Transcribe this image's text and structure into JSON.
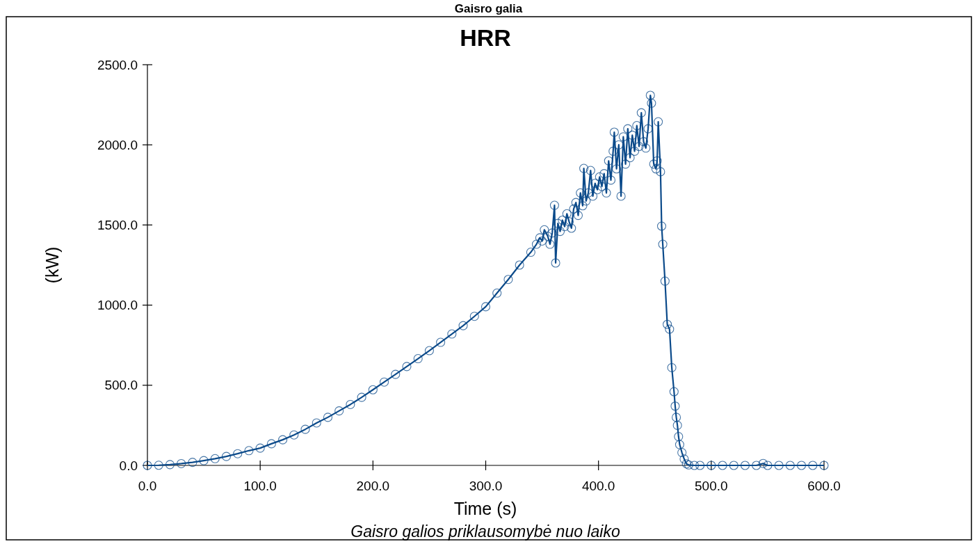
{
  "chart_data": {
    "type": "line",
    "title": "Gaisro galia",
    "subtitle": "HRR",
    "xlabel": "Time (s)",
    "ylabel": "(kW)",
    "annotations": [
      "Gaisro galios priklausomybė nuo laiko"
    ],
    "marker": "circle",
    "color": "#0b4a8a",
    "xlim": [
      0,
      600
    ],
    "ylim": [
      0,
      2500
    ],
    "xticks": [
      {
        "value": 0,
        "label": "0.0"
      },
      {
        "value": 100,
        "label": "100.0"
      },
      {
        "value": 200,
        "label": "200.0"
      },
      {
        "value": 300,
        "label": "300.0"
      },
      {
        "value": 400,
        "label": "400.0"
      },
      {
        "value": 500,
        "label": "500.0"
      },
      {
        "value": 600,
        "label": "600.0"
      }
    ],
    "yticks": [
      {
        "value": 0,
        "label": "0.0"
      },
      {
        "value": 500,
        "label": "500.0"
      },
      {
        "value": 1000,
        "label": "1000.0"
      },
      {
        "value": 1500,
        "label": "1500.0"
      },
      {
        "value": 2000,
        "label": "2000.0"
      },
      {
        "value": 2500,
        "label": "2500.0"
      }
    ],
    "x": [
      0,
      10,
      20,
      30,
      40,
      50,
      60,
      70,
      80,
      90,
      100,
      110,
      120,
      130,
      140,
      150,
      160,
      170,
      180,
      190,
      200,
      210,
      220,
      230,
      240,
      250,
      260,
      270,
      280,
      290,
      300,
      310,
      320,
      330,
      340,
      345,
      348,
      350,
      352,
      355,
      357,
      359,
      361,
      362,
      364,
      366,
      368,
      370,
      372,
      374,
      376,
      378,
      380,
      382,
      384,
      386,
      387,
      389,
      391,
      393,
      395,
      397,
      399,
      401,
      403,
      405,
      407,
      409,
      411,
      413,
      414,
      416,
      418,
      420,
      422,
      424,
      426,
      428,
      430,
      432,
      434,
      436,
      438,
      440,
      442,
      444,
      446,
      447,
      449,
      451,
      452,
      453,
      455,
      456,
      457,
      459,
      461,
      463,
      465,
      467,
      468,
      469,
      470,
      471,
      472,
      474,
      476,
      478,
      480,
      485,
      490,
      500,
      510,
      520,
      530,
      540,
      546,
      550,
      560,
      570,
      580,
      590,
      600
    ],
    "values": [
      0,
      1,
      5,
      11,
      19,
      30,
      42,
      56,
      73,
      92,
      108,
      135,
      160,
      190,
      225,
      265,
      300,
      340,
      380,
      425,
      472,
      520,
      568,
      617,
      666,
      716,
      768,
      820,
      872,
      930,
      990,
      1075,
      1160,
      1250,
      1330,
      1380,
      1420,
      1400,
      1470,
      1430,
      1380,
      1450,
      1623,
      1263,
      1510,
      1460,
      1530,
      1490,
      1570,
      1520,
      1480,
      1600,
      1640,
      1560,
      1700,
      1620,
      1853,
      1650,
      1700,
      1840,
      1680,
      1760,
      1720,
      1800,
      1740,
      1820,
      1700,
      1900,
      1780,
      1960,
      2079,
      1850,
      2000,
      1680,
      2050,
      1880,
      2100,
      1920,
      2060,
      1960,
      2120,
      1990,
      2200,
      2020,
      1980,
      2100,
      2309,
      2260,
      1880,
      1850,
      1900,
      2144,
      1832,
      1493,
      1380,
      1150,
      880,
      850,
      610,
      460,
      370,
      300,
      250,
      180,
      130,
      80,
      40,
      10,
      3,
      0,
      0,
      0,
      0,
      0,
      0,
      0,
      12,
      0,
      0,
      0,
      0,
      0,
      0
    ]
  }
}
